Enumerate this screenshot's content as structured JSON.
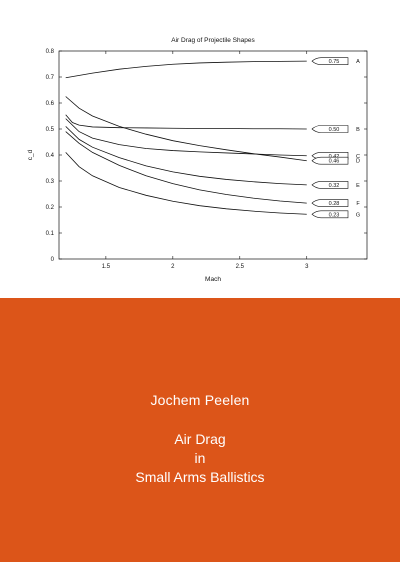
{
  "chart_data": {
    "type": "line",
    "title": "Air Drag of Projectile Shapes",
    "xlabel": "Mach",
    "ylabel": "c_d",
    "xlim": [
      1.15,
      3.45
    ],
    "ylim": [
      0,
      0.8
    ],
    "xticks": [
      1.5,
      2,
      2.5,
      3
    ],
    "xtick_labels": [
      "1.5",
      "2",
      "2.5",
      "3"
    ],
    "yticks": [
      0,
      0.1,
      0.2,
      0.3,
      0.4,
      0.5,
      0.6,
      0.7,
      0.8
    ],
    "ytick_labels": [
      "0",
      "0.1",
      "0.2",
      "0.3",
      "0.4",
      "0.5",
      "0.6",
      "0.7",
      "0.8"
    ],
    "grid": false,
    "series": [
      {
        "name": "A",
        "shape_value": "0.75",
        "x": [
          1.2,
          1.4,
          1.6,
          1.8,
          2.0,
          2.2,
          2.4,
          2.6,
          2.8,
          3.0
        ],
        "y": [
          0.697,
          0.715,
          0.73,
          0.741,
          0.749,
          0.754,
          0.757,
          0.759,
          0.76,
          0.761
        ]
      },
      {
        "name": "B",
        "shape_value": "0.50",
        "x": [
          1.2,
          1.25,
          1.3,
          1.4,
          1.6,
          1.8,
          2.0,
          2.2,
          2.4,
          2.6,
          2.8,
          3.0
        ],
        "y": [
          0.555,
          0.525,
          0.515,
          0.508,
          0.505,
          0.504,
          0.503,
          0.502,
          0.502,
          0.501,
          0.501,
          0.5
        ]
      },
      {
        "name": "C",
        "shape_value": "0.42",
        "x": [
          1.2,
          1.3,
          1.4,
          1.6,
          1.8,
          2.0,
          2.2,
          2.4,
          2.6,
          2.8,
          3.0
        ],
        "y": [
          0.54,
          0.49,
          0.465,
          0.44,
          0.425,
          0.417,
          0.412,
          0.408,
          0.404,
          0.4,
          0.397
        ]
      },
      {
        "name": "D",
        "shape_value": "0.46",
        "x": [
          1.2,
          1.3,
          1.4,
          1.6,
          1.8,
          2.0,
          2.2,
          2.4,
          2.6,
          2.8,
          3.0
        ],
        "y": [
          0.625,
          0.58,
          0.55,
          0.51,
          0.48,
          0.455,
          0.436,
          0.42,
          0.405,
          0.392,
          0.378
        ]
      },
      {
        "name": "E",
        "shape_value": "0.32",
        "x": [
          1.2,
          1.3,
          1.4,
          1.6,
          1.8,
          2.0,
          2.2,
          2.4,
          2.6,
          2.8,
          3.0
        ],
        "y": [
          0.51,
          0.46,
          0.43,
          0.39,
          0.358,
          0.335,
          0.318,
          0.306,
          0.297,
          0.29,
          0.285
        ]
      },
      {
        "name": "F",
        "shape_value": "0.28",
        "x": [
          1.2,
          1.3,
          1.4,
          1.6,
          1.8,
          2.0,
          2.2,
          2.4,
          2.6,
          2.8,
          3.0
        ],
        "y": [
          0.49,
          0.445,
          0.41,
          0.36,
          0.32,
          0.29,
          0.266,
          0.248,
          0.234,
          0.223,
          0.215
        ]
      },
      {
        "name": "G",
        "shape_value": "0.23",
        "x": [
          1.2,
          1.3,
          1.4,
          1.6,
          1.8,
          2.0,
          2.2,
          2.4,
          2.6,
          2.8,
          3.0
        ],
        "y": [
          0.41,
          0.355,
          0.32,
          0.275,
          0.245,
          0.222,
          0.205,
          0.193,
          0.184,
          0.177,
          0.172
        ]
      }
    ]
  },
  "cover": {
    "background": "#dc5519",
    "author": "Jochem Peelen",
    "title_lines": [
      "Air Drag",
      "in",
      "Small Arms Ballistics"
    ]
  }
}
